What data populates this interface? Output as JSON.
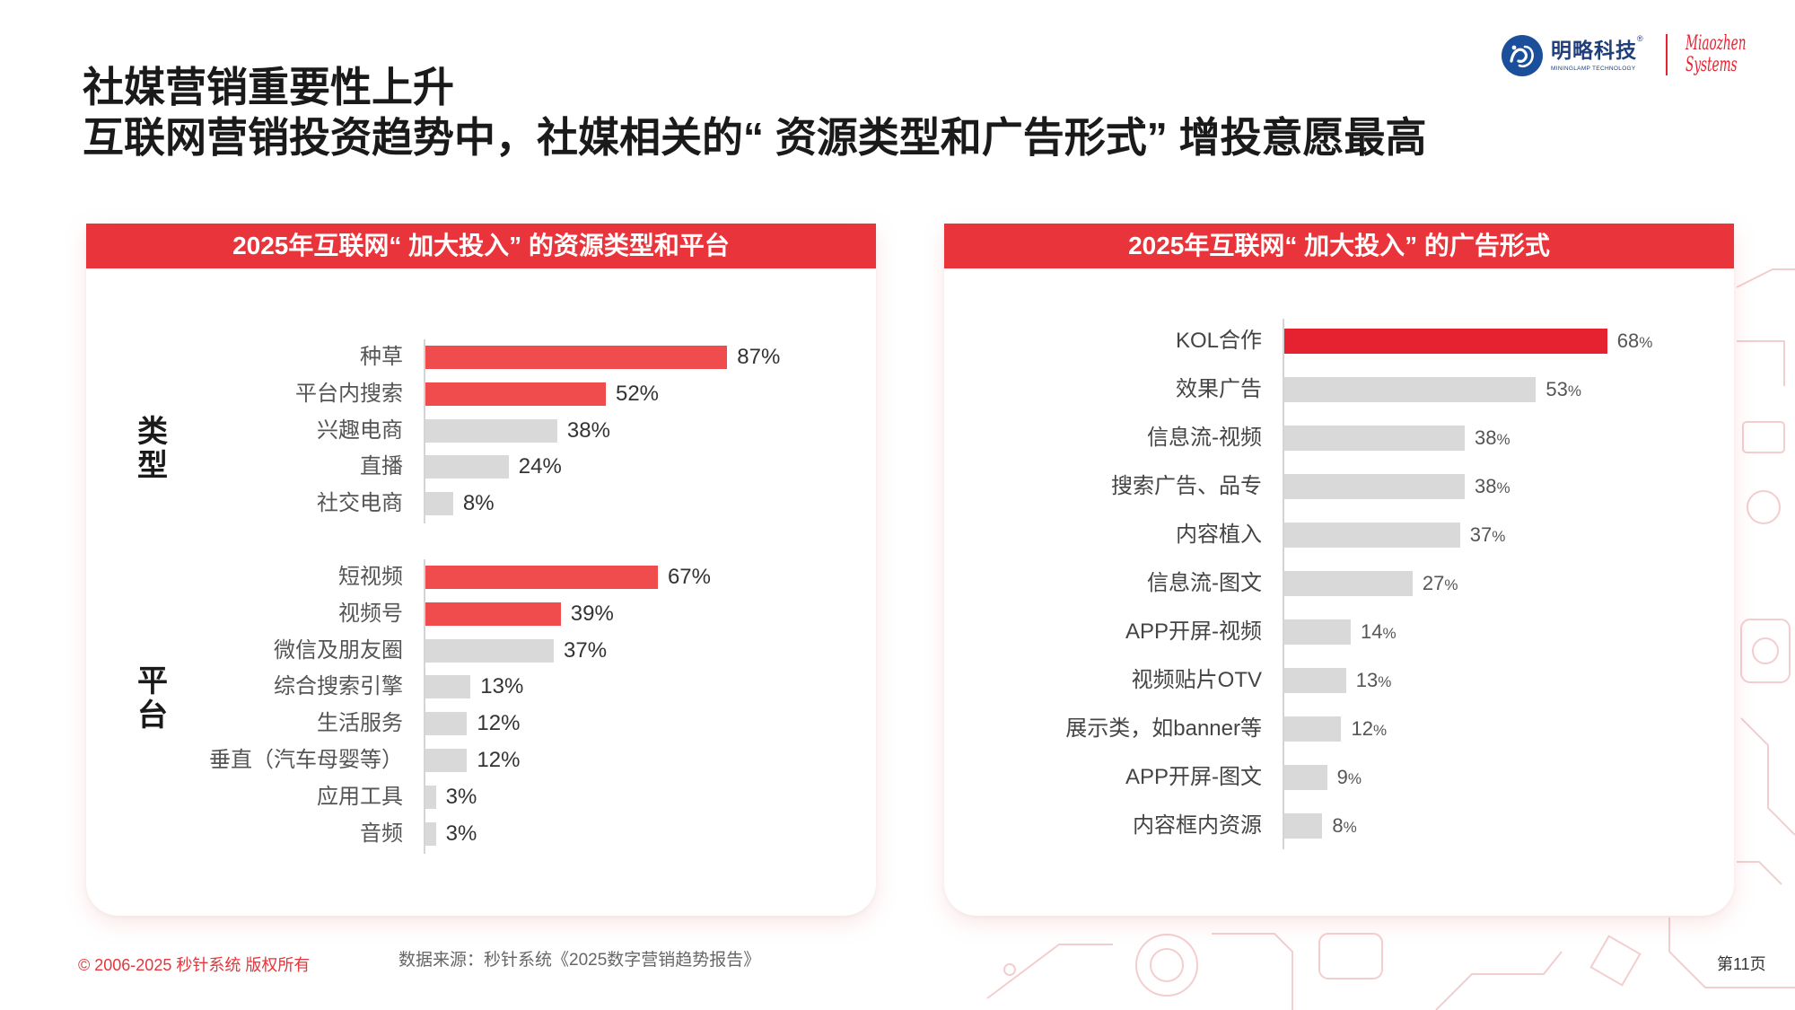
{
  "slide": {
    "title_line1": "社媒营销重要性上升",
    "title_line2": "互联网营销投资趋势中，社媒相关的“ 资源类型和广告形式” 增投意愿最高"
  },
  "logo": {
    "icon": "mininglamp-logo-icon",
    "brand_cn": "明略科技",
    "registered_mark": "®",
    "brand_en": "MININGLAMP TECHNOLOGY",
    "partner_line1": "Miaozhen",
    "partner_line2": "Systems"
  },
  "colors": {
    "header_red": "#E8343A",
    "left_highlight": "#F04B4D",
    "right_highlight": "#E62231",
    "bar_gray": "#D9D9D9",
    "logo_blue": "#1B4F9C"
  },
  "chart_data": [
    {
      "type": "bar",
      "orientation": "horizontal",
      "title": "2025年互联网“ 加大投入” 的资源类型和平台",
      "unit": "%",
      "groups": [
        {
          "name": "类型",
          "categories": [
            "种草",
            "平台内搜索",
            "兴趣电商",
            "直播",
            "社交电商"
          ],
          "values": [
            87,
            52,
            38,
            24,
            8
          ],
          "highlight": [
            true,
            true,
            false,
            false,
            false
          ]
        },
        {
          "name": "平台",
          "categories": [
            "短视频",
            "视频号",
            "微信及朋友圈",
            "综合搜索引擎",
            "生活服务",
            "垂直（汽车母婴等）",
            "应用工具",
            "音频"
          ],
          "values": [
            67,
            39,
            37,
            13,
            12,
            12,
            3,
            3
          ],
          "highlight": [
            true,
            true,
            false,
            false,
            false,
            false,
            false,
            false
          ]
        }
      ]
    },
    {
      "type": "bar",
      "orientation": "horizontal",
      "title": "2025年互联网“ 加大投入” 的广告形式",
      "unit": "%",
      "categories": [
        "KOL合作",
        "效果广告",
        "信息流-视频",
        "搜索广告、品专",
        "内容植入",
        "信息流-图文",
        "APP开屏-视频",
        "视频贴片OTV",
        "展示类，如banner等",
        "APP开屏-图文",
        "内容框内资源"
      ],
      "values": [
        68,
        53,
        38,
        38,
        37,
        27,
        14,
        13,
        12,
        9,
        8
      ],
      "highlight": [
        true,
        false,
        false,
        false,
        false,
        false,
        false,
        false,
        false,
        false,
        false
      ]
    }
  ],
  "footer": {
    "copyright": "© 2006-2025 秒针系统 版权所有",
    "source": "数据来源：秒针系统《2025数字营销趋势报告》",
    "page_number": "第11页"
  }
}
